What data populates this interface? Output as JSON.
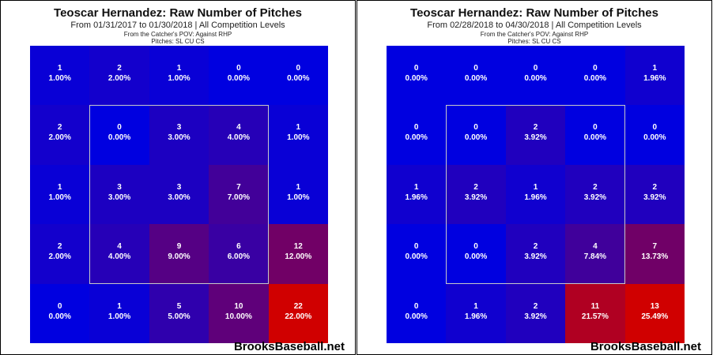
{
  "brand": "BrooksBaseball.net",
  "chart_data": [
    {
      "type": "heatmap",
      "title": "Teoscar Hernandez: Raw Number of Pitches",
      "subtitle": "From 01/31/2017 to 01/30/2018 | All Competition Levels",
      "pov": "From the Catcher's POV:  Against RHP",
      "pitches": "Pitches: SL  CU  CS",
      "rows": 5,
      "cols": 5,
      "counts": [
        [
          1,
          2,
          1,
          0,
          0
        ],
        [
          2,
          0,
          3,
          4,
          1
        ],
        [
          1,
          3,
          3,
          7,
          1
        ],
        [
          2,
          4,
          9,
          6,
          12
        ],
        [
          0,
          1,
          5,
          10,
          22
        ]
      ],
      "percents": [
        [
          "1.00%",
          "2.00%",
          "1.00%",
          "0.00%",
          "0.00%"
        ],
        [
          "2.00%",
          "0.00%",
          "3.00%",
          "4.00%",
          "1.00%"
        ],
        [
          "1.00%",
          "3.00%",
          "3.00%",
          "7.00%",
          "1.00%"
        ],
        [
          "2.00%",
          "4.00%",
          "9.00%",
          "6.00%",
          "12.00%"
        ],
        [
          "0.00%",
          "1.00%",
          "5.00%",
          "10.00%",
          "22.00%"
        ]
      ],
      "strike_zone": "inner 3x3"
    },
    {
      "type": "heatmap",
      "title": "Teoscar Hernandez: Raw Number of Pitches",
      "subtitle": "From 02/28/2018 to 04/30/2018 | All Competition Levels",
      "pov": "From the Catcher's POV:  Against RHP",
      "pitches": "Pitches: SL  CU  CS",
      "rows": 5,
      "cols": 5,
      "counts": [
        [
          0,
          0,
          0,
          0,
          1
        ],
        [
          0,
          0,
          2,
          0,
          0
        ],
        [
          1,
          2,
          1,
          2,
          2
        ],
        [
          0,
          0,
          2,
          4,
          7
        ],
        [
          0,
          1,
          2,
          11,
          13
        ]
      ],
      "percents": [
        [
          "0.00%",
          "0.00%",
          "0.00%",
          "0.00%",
          "1.96%"
        ],
        [
          "0.00%",
          "0.00%",
          "3.92%",
          "0.00%",
          "0.00%"
        ],
        [
          "1.96%",
          "3.92%",
          "1.96%",
          "3.92%",
          "3.92%"
        ],
        [
          "0.00%",
          "0.00%",
          "3.92%",
          "7.84%",
          "13.73%"
        ],
        [
          "0.00%",
          "1.96%",
          "3.92%",
          "21.57%",
          "25.49%"
        ]
      ],
      "strike_zone": "inner 3x3"
    }
  ],
  "colors": {
    "cold": "#0000e0",
    "hot": "#d00000",
    "zone_border": "#c8c8c8"
  }
}
